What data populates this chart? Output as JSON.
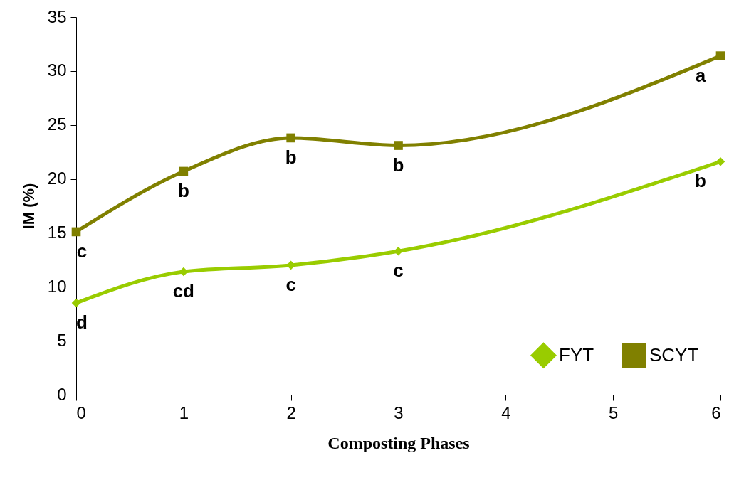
{
  "chart_data": {
    "type": "line",
    "xlabel": "Composting Phases",
    "ylabel": "IM (%)",
    "xlim": [
      0,
      6
    ],
    "xticks": [
      0,
      1,
      2,
      3,
      4,
      5,
      6
    ],
    "ylim": [
      0,
      35
    ],
    "yticks": [
      0,
      5,
      10,
      15,
      20,
      25,
      30,
      35
    ],
    "x": [
      0,
      1,
      2,
      3,
      6
    ],
    "series": [
      {
        "name": "FYT",
        "color": "#99cc00",
        "marker": "diamond",
        "values": [
          8.5,
          11.4,
          12.0,
          13.3,
          21.6
        ]
      },
      {
        "name": "SCYT",
        "color": "#808000",
        "marker": "square",
        "values": [
          15.1,
          20.7,
          23.8,
          23.1,
          31.4
        ]
      }
    ],
    "annotations": [
      {
        "text": "c",
        "x": 0,
        "y": 15.1
      },
      {
        "text": "b",
        "x": 1,
        "y": 20.7
      },
      {
        "text": "b",
        "x": 2,
        "y": 23.8
      },
      {
        "text": "b",
        "x": 3,
        "y": 23.1
      },
      {
        "text": "a",
        "x": 6,
        "y": 31.4
      },
      {
        "text": "d",
        "x": 0,
        "y": 8.5
      },
      {
        "text": "cd",
        "x": 1,
        "y": 11.4
      },
      {
        "text": "c",
        "x": 2,
        "y": 12.0
      },
      {
        "text": "c",
        "x": 3,
        "y": 13.3
      },
      {
        "text": "b",
        "x": 6,
        "y": 21.6
      }
    ],
    "grid": false,
    "legend": "bottom right",
    "line_style": "solid"
  }
}
